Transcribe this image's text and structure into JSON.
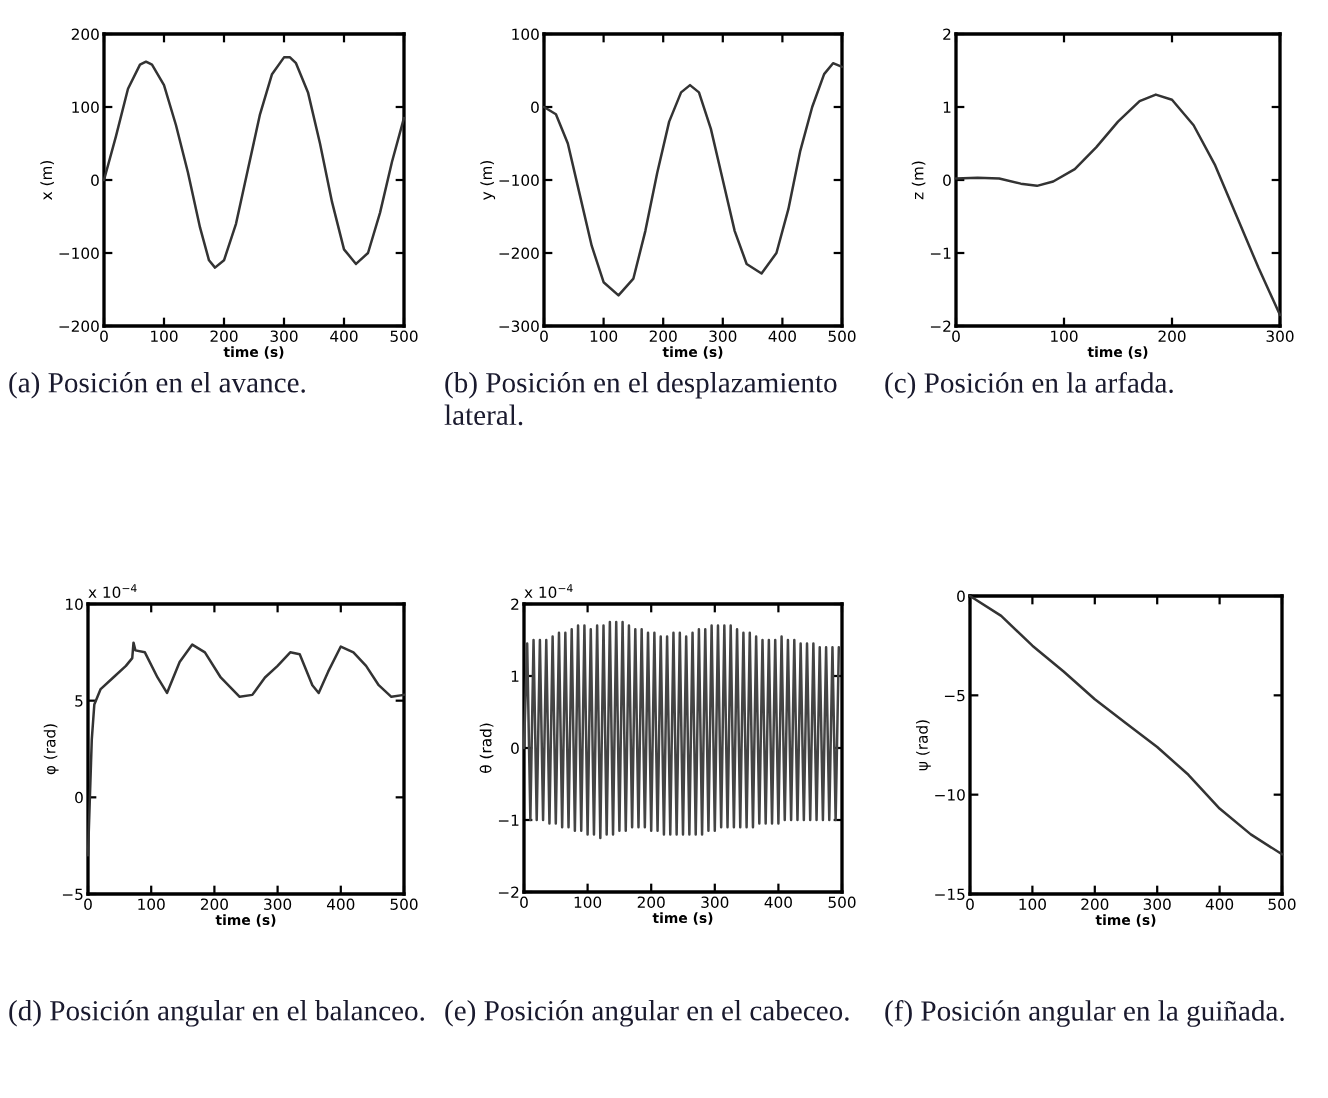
{
  "chart_data": [
    {
      "type": "line",
      "title": "(a) Posición en el avance.",
      "xlabel": "time (s)",
      "ylabel": "x (m)",
      "xlim": [
        0,
        500
      ],
      "ylim": [
        -200,
        200
      ],
      "xticks": [
        0,
        100,
        200,
        300,
        400,
        500
      ],
      "yticks": [
        -200,
        -100,
        0,
        100,
        200
      ],
      "grid": false,
      "series": [
        {
          "color": "#333333",
          "x": [
            0,
            20,
            40,
            60,
            70,
            80,
            100,
            120,
            140,
            160,
            175,
            185,
            200,
            220,
            240,
            260,
            280,
            300,
            310,
            320,
            340,
            360,
            380,
            400,
            420,
            440,
            460,
            480,
            500
          ],
          "values": [
            0,
            60,
            125,
            158,
            162,
            158,
            130,
            75,
            10,
            -65,
            -110,
            -120,
            -110,
            -60,
            15,
            90,
            145,
            168,
            168,
            160,
            120,
            50,
            -30,
            -95,
            -115,
            -100,
            -45,
            25,
            85
          ]
        }
      ]
    },
    {
      "type": "line",
      "title": "(b) Posición en el desplazamiento lateral.",
      "xlabel": "time (s)",
      "ylabel": "y (m)",
      "xlim": [
        0,
        500
      ],
      "ylim": [
        -300,
        100
      ],
      "xticks": [
        0,
        100,
        200,
        300,
        400,
        500
      ],
      "yticks": [
        -300,
        -200,
        -100,
        0,
        100
      ],
      "grid": false,
      "series": [
        {
          "color": "#333333",
          "x": [
            0,
            20,
            40,
            60,
            80,
            100,
            125,
            150,
            170,
            190,
            210,
            230,
            245,
            260,
            280,
            300,
            320,
            340,
            365,
            390,
            410,
            430,
            450,
            470,
            485,
            500
          ],
          "values": [
            0,
            -10,
            -50,
            -120,
            -190,
            -240,
            -258,
            -235,
            -170,
            -90,
            -20,
            20,
            30,
            20,
            -30,
            -100,
            -170,
            -215,
            -228,
            -200,
            -140,
            -60,
            0,
            45,
            60,
            55
          ]
        }
      ]
    },
    {
      "type": "line",
      "title": "(c) Posición en la arfada.",
      "xlabel": "time (s)",
      "ylabel": "z (m)",
      "xlim": [
        0,
        300
      ],
      "ylim": [
        -2,
        2
      ],
      "xticks": [
        0,
        100,
        200,
        300
      ],
      "yticks": [
        -2,
        -1,
        0,
        1,
        2
      ],
      "grid": false,
      "series": [
        {
          "color": "#333333",
          "x": [
            0,
            20,
            40,
            60,
            75,
            90,
            110,
            130,
            150,
            170,
            185,
            200,
            220,
            240,
            260,
            280,
            300
          ],
          "values": [
            0.02,
            0.03,
            0.02,
            -0.05,
            -0.08,
            -0.02,
            0.15,
            0.45,
            0.8,
            1.08,
            1.17,
            1.1,
            0.75,
            0.2,
            -0.5,
            -1.2,
            -1.85
          ]
        }
      ]
    },
    {
      "type": "line",
      "title": "(d) Posición angular en el balanceo.",
      "xlabel": "time (s)",
      "ylabel": "φ (rad)",
      "annotations": [
        "x 10$^{−4}$"
      ],
      "xlim": [
        0,
        500
      ],
      "ylim": [
        -5,
        10
      ],
      "xticks": [
        0,
        100,
        200,
        300,
        400,
        500
      ],
      "yticks": [
        -5,
        0,
        5,
        10
      ],
      "grid": false,
      "series": [
        {
          "color": "#333333",
          "x": [
            0,
            3,
            6,
            10,
            20,
            40,
            60,
            70,
            72,
            75,
            90,
            110,
            125,
            145,
            165,
            185,
            210,
            240,
            260,
            280,
            300,
            320,
            335,
            355,
            365,
            380,
            400,
            420,
            440,
            460,
            480,
            500
          ],
          "values": [
            -3,
            0,
            3,
            4.8,
            5.6,
            6.2,
            6.8,
            7.2,
            8,
            7.6,
            7.5,
            6.2,
            5.4,
            7,
            7.9,
            7.5,
            6.2,
            5.2,
            5.3,
            6.2,
            6.8,
            7.5,
            7.4,
            5.8,
            5.4,
            6.5,
            7.8,
            7.5,
            6.8,
            5.8,
            5.2,
            5.3
          ]
        }
      ]
    },
    {
      "type": "line",
      "title": "(e) Posición angular en el cabeceo.",
      "xlabel": "time (s)",
      "ylabel": "θ (rad)",
      "annotations": [
        "x 10$^{−4}$"
      ],
      "xlim": [
        0,
        500
      ],
      "ylim": [
        -2,
        2
      ],
      "xticks": [
        0,
        100,
        200,
        300,
        400,
        500
      ],
      "yticks": [
        -2,
        -1,
        0,
        1,
        2
      ],
      "grid": false,
      "series": [
        {
          "color": "#444444",
          "x": [
            0,
            5,
            10,
            15,
            20,
            25,
            30,
            35,
            40,
            45,
            50,
            55,
            60,
            65,
            70,
            75,
            80,
            85,
            90,
            95,
            100,
            105,
            110,
            115,
            120,
            125,
            130,
            135,
            140,
            145,
            150,
            155,
            160,
            165,
            170,
            175,
            180,
            185,
            190,
            195,
            200,
            205,
            210,
            215,
            220,
            225,
            230,
            235,
            240,
            245,
            250,
            255,
            260,
            265,
            270,
            275,
            280,
            285,
            290,
            295,
            300,
            305,
            310,
            315,
            320,
            325,
            330,
            335,
            340,
            345,
            350,
            355,
            360,
            365,
            370,
            375,
            380,
            385,
            390,
            395,
            400,
            405,
            410,
            415,
            420,
            425,
            430,
            435,
            440,
            445,
            450,
            455,
            460,
            465,
            470,
            475,
            480,
            485,
            490,
            495
          ],
          "values": [
            0,
            1.45,
            -1.0,
            1.5,
            -1.0,
            1.5,
            -1.0,
            1.5,
            -1.05,
            1.55,
            -1.05,
            1.6,
            -1.1,
            1.6,
            -1.1,
            1.65,
            -1.15,
            1.7,
            -1.15,
            1.7,
            -1.2,
            1.65,
            -1.2,
            1.7,
            -1.25,
            1.7,
            -1.2,
            1.75,
            -1.2,
            1.75,
            -1.15,
            1.75,
            -1.15,
            1.7,
            -1.1,
            1.65,
            -1.1,
            1.65,
            -1.1,
            1.6,
            -1.15,
            1.6,
            -1.15,
            1.55,
            -1.2,
            1.55,
            -1.2,
            1.6,
            -1.2,
            1.6,
            -1.2,
            1.55,
            -1.2,
            1.6,
            -1.2,
            1.65,
            -1.2,
            1.65,
            -1.15,
            1.7,
            -1.15,
            1.7,
            -1.1,
            1.7,
            -1.1,
            1.7,
            -1.1,
            1.65,
            -1.1,
            1.6,
            -1.1,
            1.6,
            -1.1,
            1.55,
            -1.05,
            1.5,
            -1.05,
            1.5,
            -1.05,
            1.5,
            -1.05,
            1.55,
            -1.0,
            1.5,
            -1.0,
            1.5,
            -1.0,
            1.45,
            -1.0,
            1.45,
            -1.0,
            1.45,
            -1.0,
            1.4,
            -1.0,
            1.4,
            -1.0,
            1.4,
            -1.0,
            1.4
          ]
        }
      ]
    },
    {
      "type": "line",
      "title": "(f) Posición angular en la guiñada.",
      "xlabel": "time (s)",
      "ylabel": "ψ (rad)",
      "xlim": [
        0,
        500
      ],
      "ylim": [
        -15,
        0
      ],
      "xticks": [
        0,
        100,
        200,
        300,
        400,
        500
      ],
      "yticks": [
        -15,
        -10,
        -5,
        0
      ],
      "grid": false,
      "series": [
        {
          "color": "#333333",
          "x": [
            0,
            50,
            100,
            150,
            200,
            250,
            300,
            350,
            400,
            450,
            500
          ],
          "values": [
            0,
            -1,
            -2.5,
            -3.8,
            -5.2,
            -6.4,
            -7.6,
            -9,
            -10.7,
            -12,
            -13
          ]
        }
      ]
    }
  ]
}
